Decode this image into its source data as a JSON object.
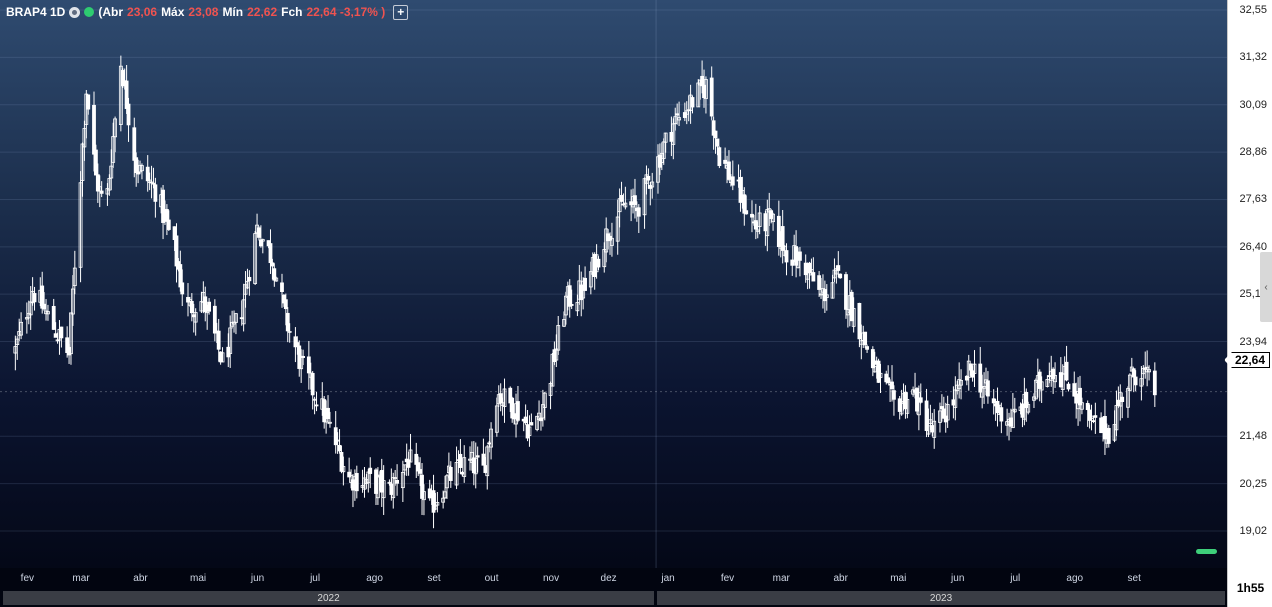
{
  "legend": {
    "symbol": "BRAP4 1D",
    "open_label": "(Abr",
    "open_value": "23,06",
    "high_label": "Máx",
    "high_value": "23,08",
    "low_label": "Mín",
    "low_value": "22,62",
    "close_label": "Fch",
    "close_value": "22,64 -3,17% )",
    "add_label": "+"
  },
  "current_price": "22,64",
  "time_label": "1h55",
  "colors": {
    "candle": "#ffffff",
    "negative": "#ef5350",
    "live_dot": "#2ecc71"
  },
  "icons": [
    "eye-circle-icon",
    "live-status-dot-icon",
    "add-indicator-icon",
    "collapse-panel-icon"
  ],
  "chart_data": {
    "type": "candlestick",
    "symbol": "BRAP4",
    "interval": "1D",
    "ylim": [
      18.5,
      32.55
    ],
    "y_ticks": [
      "32,55",
      "31,32",
      "30,09",
      "28,86",
      "27,63",
      "26,40",
      "25,17",
      "23,94",
      "21,48",
      "20,25",
      "19,02"
    ],
    "x_months": [
      "fev",
      "mar",
      "abr",
      "mai",
      "jun",
      "jul",
      "ago",
      "set",
      "out",
      "nov",
      "dez",
      "jan",
      "fev",
      "mar",
      "abr",
      "mai",
      "jun",
      "jul",
      "ago",
      "set"
    ],
    "years": [
      "2022",
      "2023"
    ],
    "close_path": [
      [
        "2022-02-01",
        23.7
      ],
      [
        "2022-02-10",
        25.3
      ],
      [
        "2022-02-20",
        24.4
      ],
      [
        "2022-03-01",
        23.6
      ],
      [
        "2022-03-05",
        26.8
      ],
      [
        "2022-03-10",
        30.5
      ],
      [
        "2022-03-15",
        28.2
      ],
      [
        "2022-03-20",
        27.3
      ],
      [
        "2022-03-28",
        31.2
      ],
      [
        "2022-04-05",
        28.5
      ],
      [
        "2022-04-15",
        27.9
      ],
      [
        "2022-04-25",
        26.3
      ],
      [
        "2022-05-01",
        24.8
      ],
      [
        "2022-05-10",
        25.0
      ],
      [
        "2022-05-20",
        23.4
      ],
      [
        "2022-05-30",
        24.8
      ],
      [
        "2022-06-07",
        26.9
      ],
      [
        "2022-06-15",
        26.1
      ],
      [
        "2022-06-22",
        24.5
      ],
      [
        "2022-07-01",
        23.2
      ],
      [
        "2022-07-10",
        22.3
      ],
      [
        "2022-07-18",
        21.3
      ],
      [
        "2022-07-25",
        20.4
      ],
      [
        "2022-08-05",
        20.3
      ],
      [
        "2022-08-15",
        20.1
      ],
      [
        "2022-08-25",
        20.9
      ],
      [
        "2022-09-05",
        19.6
      ],
      [
        "2022-09-15",
        20.4
      ],
      [
        "2022-09-25",
        20.8
      ],
      [
        "2022-10-03",
        20.6
      ],
      [
        "2022-10-10",
        22.6
      ],
      [
        "2022-10-20",
        22.2
      ],
      [
        "2022-10-28",
        21.6
      ],
      [
        "2022-11-05",
        22.6
      ],
      [
        "2022-11-15",
        25.0
      ],
      [
        "2022-11-25",
        25.3
      ],
      [
        "2022-12-05",
        26.6
      ],
      [
        "2022-12-15",
        27.5
      ],
      [
        "2022-12-22",
        27.4
      ],
      [
        "2022-12-30",
        28.3
      ],
      [
        "2023-01-10",
        29.6
      ],
      [
        "2023-01-20",
        30.2
      ],
      [
        "2023-01-27",
        30.6
      ],
      [
        "2023-02-03",
        28.8
      ],
      [
        "2023-02-12",
        27.9
      ],
      [
        "2023-02-22",
        26.9
      ],
      [
        "2023-03-01",
        27.1
      ],
      [
        "2023-03-10",
        26.3
      ],
      [
        "2023-03-20",
        25.9
      ],
      [
        "2023-03-28",
        25.1
      ],
      [
        "2023-04-05",
        25.6
      ],
      [
        "2023-04-15",
        24.6
      ],
      [
        "2023-04-25",
        23.2
      ],
      [
        "2023-05-05",
        22.3
      ],
      [
        "2023-05-15",
        22.6
      ],
      [
        "2023-05-25",
        21.6
      ],
      [
        "2023-06-05",
        22.4
      ],
      [
        "2023-06-15",
        23.3
      ],
      [
        "2023-06-25",
        22.3
      ],
      [
        "2023-07-05",
        21.9
      ],
      [
        "2023-07-15",
        22.4
      ],
      [
        "2023-07-25",
        23.3
      ],
      [
        "2023-08-05",
        22.9
      ],
      [
        "2023-08-15",
        21.8
      ],
      [
        "2023-08-25",
        21.6
      ],
      [
        "2023-09-01",
        22.6
      ],
      [
        "2023-09-10",
        23.3
      ],
      [
        "2023-09-18",
        22.64
      ]
    ]
  }
}
